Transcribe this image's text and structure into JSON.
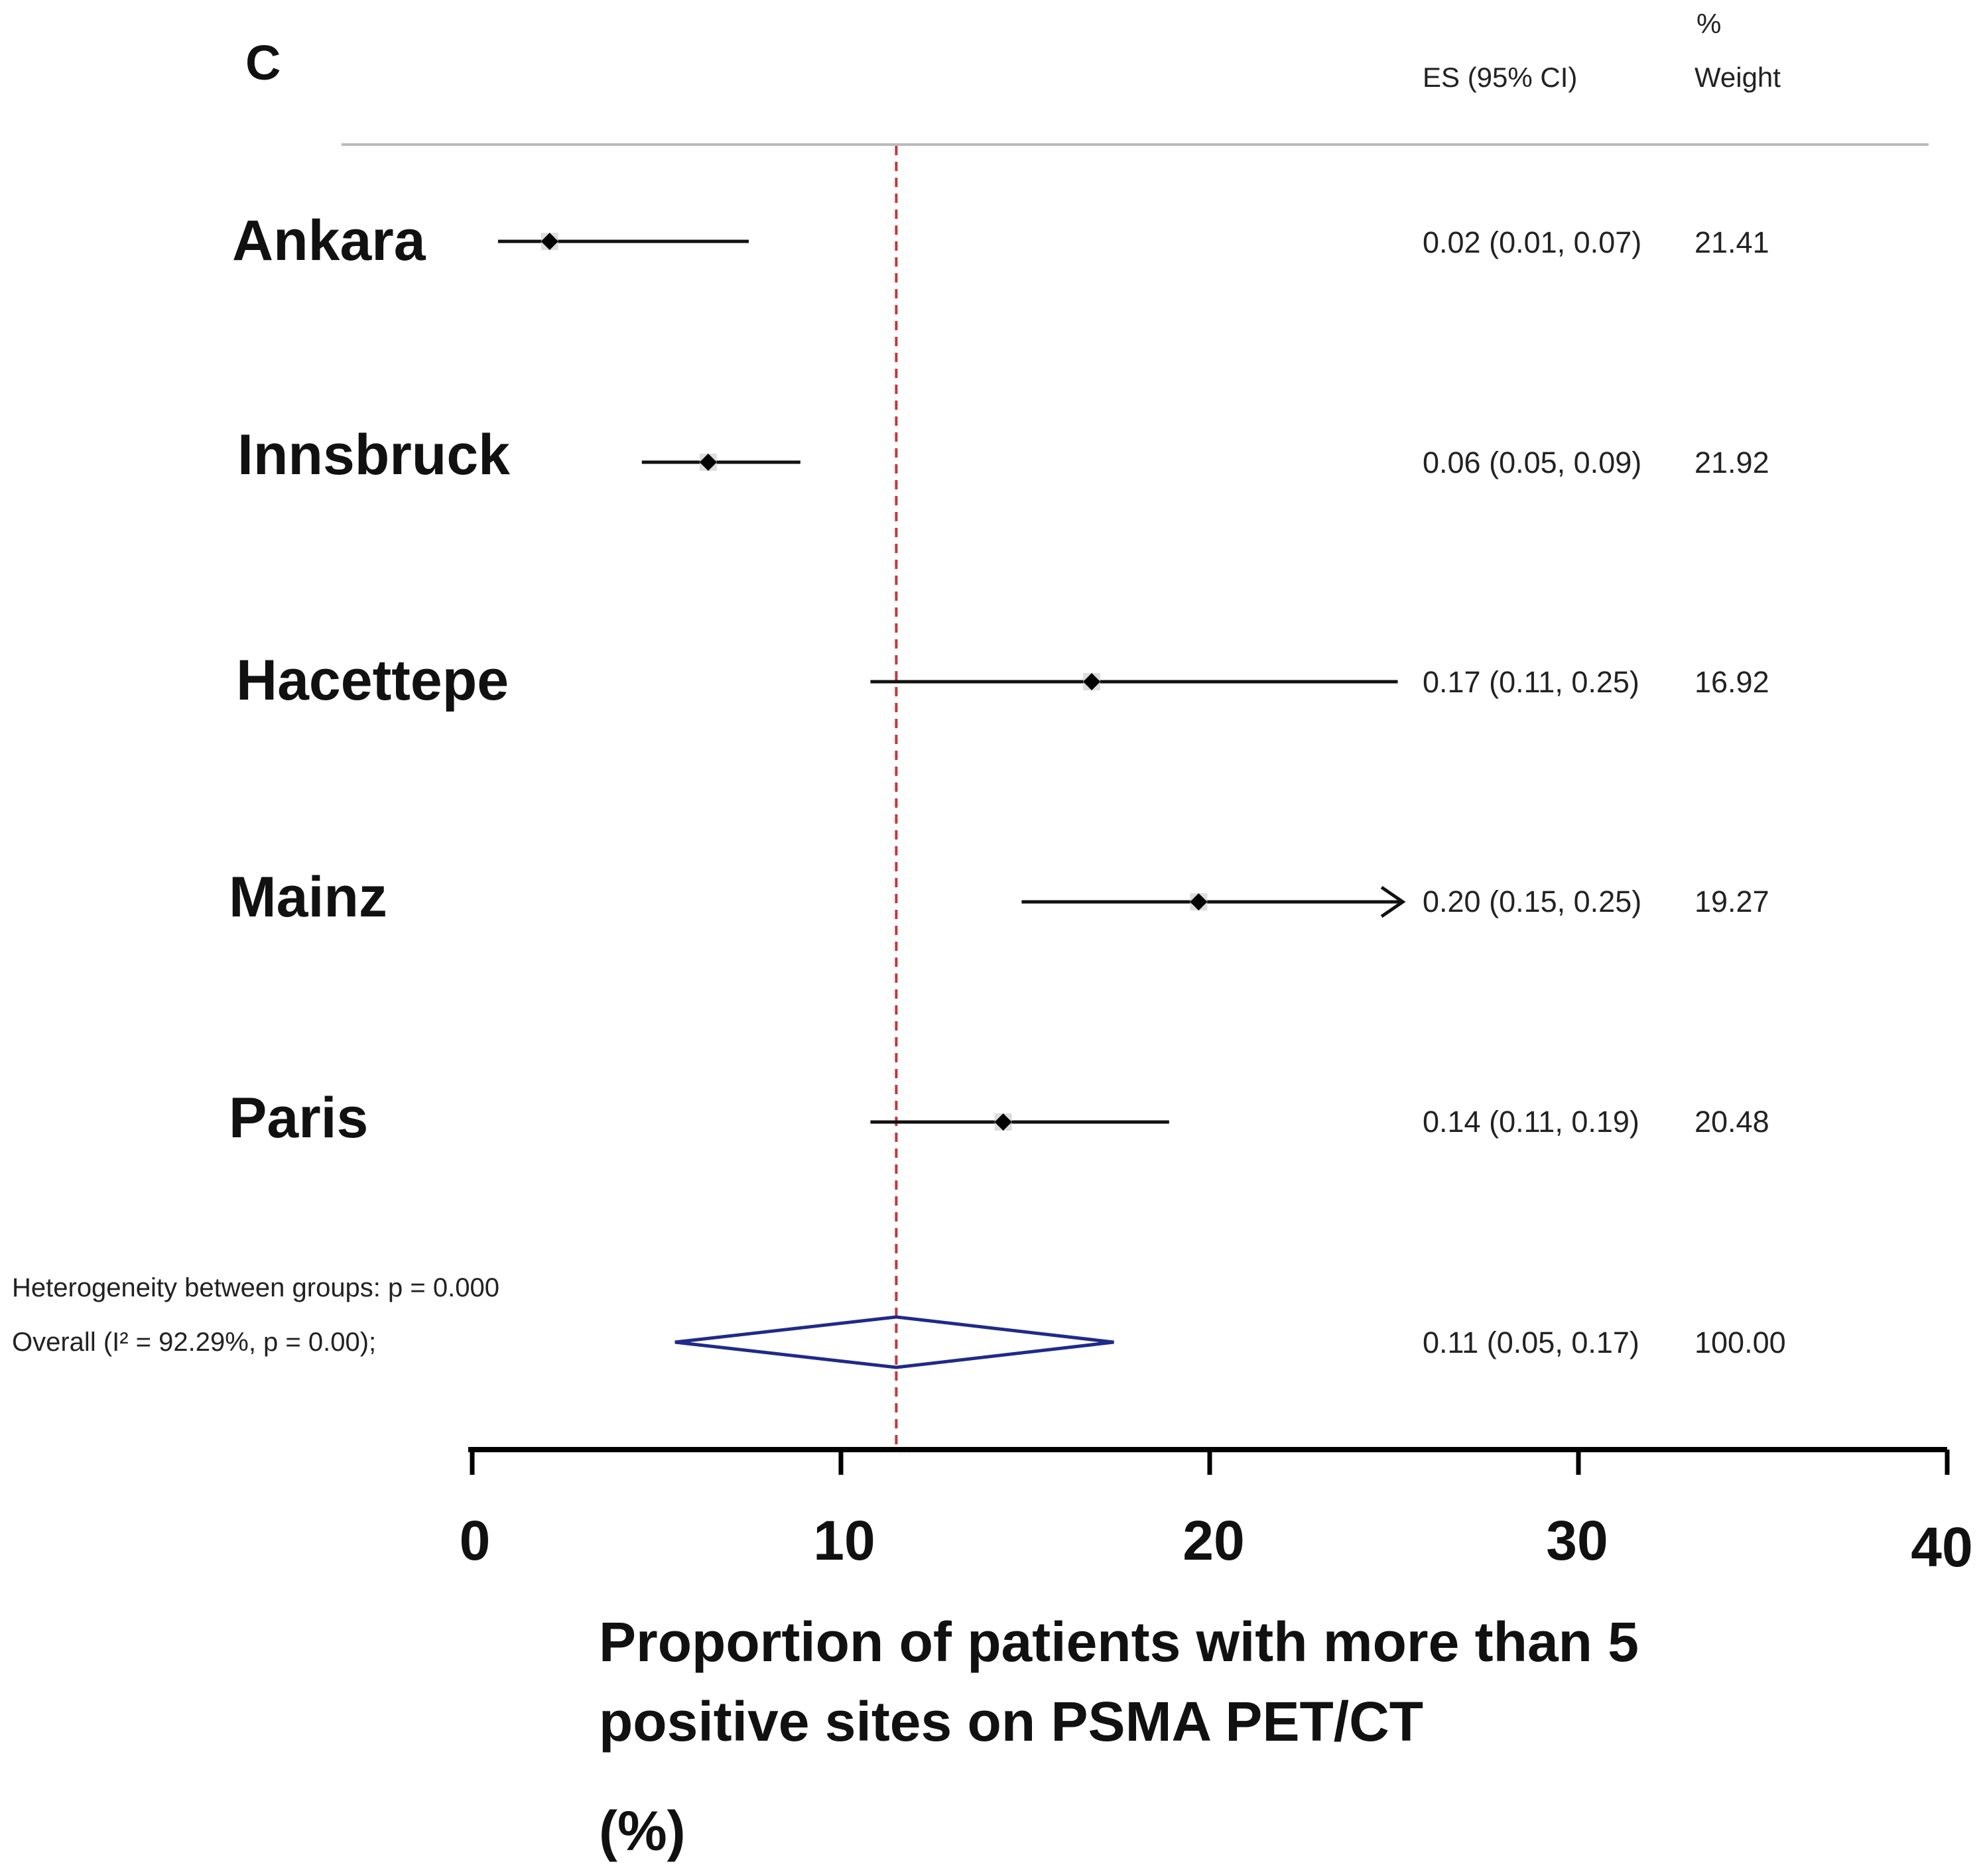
{
  "panel_label": "C",
  "columns": {
    "es_header": "ES (95% CI)",
    "weight_header_line1": "%",
    "weight_header_line2": "Weight"
  },
  "studies": [
    {
      "name": "Ankara",
      "es_text": "0.02 (0.01, 0.07)",
      "weight": "21.41"
    },
    {
      "name": "Innsbruck",
      "es_text": "0.06 (0.05, 0.09)",
      "weight": "21.92"
    },
    {
      "name": "Hacettepe",
      "es_text": "0.17 (0.11, 0.25)",
      "weight": "16.92"
    },
    {
      "name": "Mainz",
      "es_text": "0.20 (0.15, 0.25)",
      "weight": "19.27"
    },
    {
      "name": "Paris",
      "es_text": "0.14 (0.11, 0.19)",
      "weight": "20.48"
    }
  ],
  "heterogeneity_text": "Heterogeneity between groups: p = 0.000",
  "overall": {
    "label": "Overall  (I²  = 92.29%, p = 0.00);",
    "es_text": "0.11 (0.05, 0.17)",
    "weight": "100.00"
  },
  "x_axis": {
    "ticks": [
      "0",
      "10",
      "20",
      "30",
      "40"
    ],
    "label_line1": "Proportion of patients with more than 5",
    "label_line2": "positive sites on PSMA PET/CT",
    "label_line3": "(%)"
  },
  "colors": {
    "study_line": "#111111",
    "overall_diamond": "#1f2a8a",
    "reference_line": "#c0393b",
    "header_rule": "#bbbbbb"
  },
  "chart_data": {
    "type": "forest",
    "xlim": [
      0,
      40
    ],
    "reference_value": 11.5,
    "series": [
      {
        "name": "Ankara",
        "estimate": 2.1,
        "ci_low": 0.7,
        "ci_high": 7.5,
        "weight": 21.41
      },
      {
        "name": "Innsbruck",
        "estimate": 6.4,
        "ci_low": 4.6,
        "ci_high": 8.9,
        "weight": 21.92
      },
      {
        "name": "Hacettepe",
        "estimate": 16.8,
        "ci_low": 10.8,
        "ci_high": 25.1,
        "weight": 16.92
      },
      {
        "name": "Mainz",
        "estimate": 19.7,
        "ci_low": 14.9,
        "ci_high": 25.2,
        "weight": 19.27,
        "arrow": true
      },
      {
        "name": "Paris",
        "estimate": 14.4,
        "ci_low": 10.8,
        "ci_high": 18.9,
        "weight": 20.48
      }
    ],
    "overall": {
      "estimate": 11.5,
      "ci_low": 5.5,
      "ci_high": 17.4,
      "weight": 100.0
    }
  }
}
